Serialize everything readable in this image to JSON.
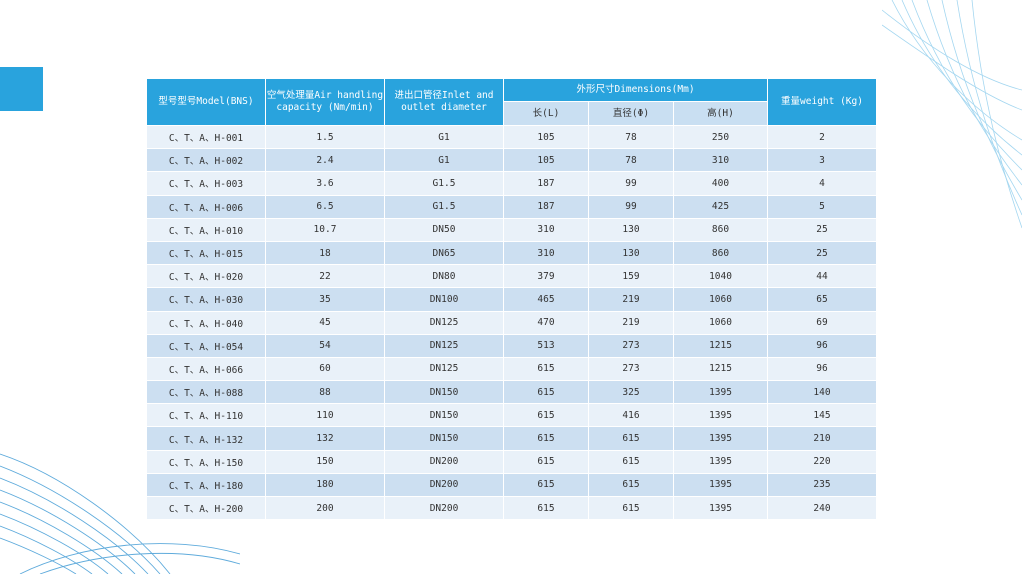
{
  "table": {
    "headers": {
      "model": "型号型号Model(BNS)",
      "capacity": "空气处理量Air handling capacity (Nm/min)",
      "diameter": "进出口管径Inlet and outlet diameter",
      "dimensions": "外形尺寸Dimensions(Mm)",
      "length": "长(L)",
      "dia": "直径(Φ)",
      "height": "高(H)",
      "weight": "重量weight (Kg)"
    },
    "rows": [
      [
        "C、T、A、H-001",
        "1.5",
        "G1",
        "105",
        "78",
        "250",
        "2"
      ],
      [
        "C、T、A、H-002",
        "2.4",
        "G1",
        "105",
        "78",
        "310",
        "3"
      ],
      [
        "C、T、A、H-003",
        "3.6",
        "G1.5",
        "187",
        "99",
        "400",
        "4"
      ],
      [
        "C、T、A、H-006",
        "6.5",
        "G1.5",
        "187",
        "99",
        "425",
        "5"
      ],
      [
        "C、T、A、H-010",
        "10.7",
        "DN50",
        "310",
        "130",
        "860",
        "25"
      ],
      [
        "C、T、A、H-015",
        "18",
        "DN65",
        "310",
        "130",
        "860",
        "25"
      ],
      [
        "C、T、A、H-020",
        "22",
        "DN80",
        "379",
        "159",
        "1040",
        "44"
      ],
      [
        "C、T、A、H-030",
        "35",
        "DN100",
        "465",
        "219",
        "1060",
        "65"
      ],
      [
        "C、T、A、H-040",
        "45",
        "DN125",
        "470",
        "219",
        "1060",
        "69"
      ],
      [
        "C、T、A、H-054",
        "54",
        "DN125",
        "513",
        "273",
        "1215",
        "96"
      ],
      [
        "C、T、A、H-066",
        "60",
        "DN125",
        "615",
        "273",
        "1215",
        "96"
      ],
      [
        "C、T、A、H-088",
        "88",
        "DN150",
        "615",
        "325",
        "1395",
        "140"
      ],
      [
        "C、T、A、H-110",
        "110",
        "DN150",
        "615",
        "416",
        "1395",
        "145"
      ],
      [
        "C、T、A、H-132",
        "132",
        "DN150",
        "615",
        "615",
        "1395",
        "210"
      ],
      [
        "C、T、A、H-150",
        "150",
        "DN200",
        "615",
        "615",
        "1395",
        "220"
      ],
      [
        "C、T、A、H-180",
        "180",
        "DN200",
        "615",
        "615",
        "1395",
        "235"
      ],
      [
        "C、T、A、H-200",
        "200",
        "DN200",
        "615",
        "615",
        "1395",
        "240"
      ]
    ]
  },
  "colors": {
    "header": "#29a3dd",
    "subheader": "#c9dff2",
    "row_light": "#e9f1f9",
    "row_dark": "#ccdff1"
  }
}
